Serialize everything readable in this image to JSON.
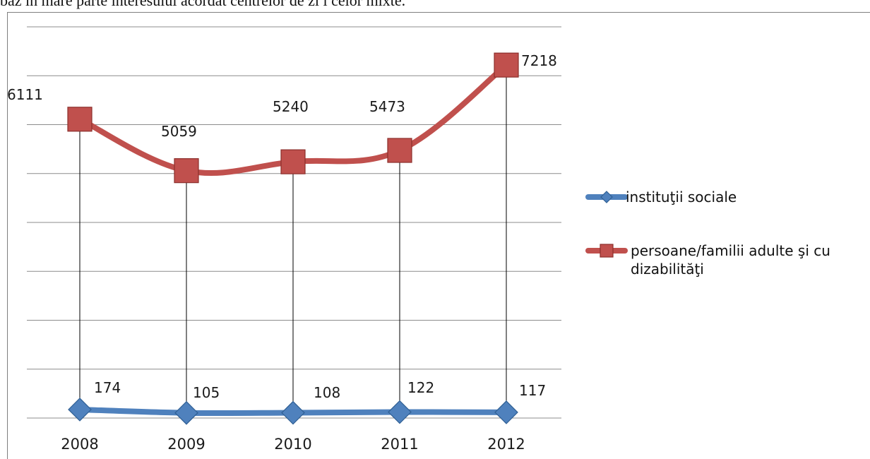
{
  "page": {
    "top_text": "baz  în mare parte interesului acordat centrelor de zi  i celor mixte."
  },
  "chart_data": {
    "type": "line",
    "categories": [
      "2008",
      "2009",
      "2010",
      "2011",
      "2012"
    ],
    "series": [
      {
        "name": "instituţii sociale",
        "values": [
          174,
          105,
          108,
          122,
          117
        ],
        "color": "#4f81bd",
        "marker": "diamond"
      },
      {
        "name": "persoane/familii adulte şi cu dizabilităţi",
        "values": [
          6111,
          5059,
          5240,
          5473,
          7218
        ],
        "color": "#c0504d",
        "marker": "square"
      }
    ],
    "ylim": [
      0,
      8000
    ],
    "grid": true,
    "legend_position": "right",
    "data_labels": true
  }
}
